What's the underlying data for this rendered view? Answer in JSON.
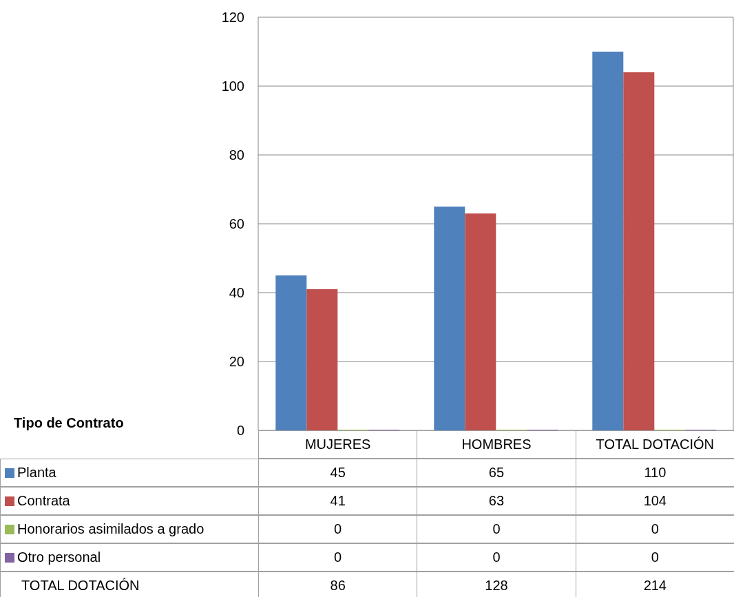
{
  "chart_data": {
    "type": "bar",
    "categories": [
      "MUJERES",
      "HOMBRES",
      "TOTAL DOTACIÓN"
    ],
    "series": [
      {
        "name": "Planta",
        "color": "#4f81bd",
        "values": [
          45,
          65,
          110
        ]
      },
      {
        "name": "Contrata",
        "color": "#c0504d",
        "values": [
          41,
          63,
          104
        ]
      },
      {
        "name": "Honorarios asimilados a grado",
        "color": "#9bbb59",
        "values": [
          0,
          0,
          0
        ]
      },
      {
        "name": "Otro personal",
        "color": "#8064a2",
        "values": [
          0,
          0,
          0
        ]
      }
    ],
    "ylim": [
      0,
      120
    ],
    "yticks": [
      0,
      20,
      40,
      60,
      80,
      100,
      120
    ],
    "grid": "y",
    "legend": "bottom left",
    "legend_title": "Tipo de Contrato",
    "data_labels": true,
    "annotations": [
      "TOTAL DOTACIÓN",
      "86",
      "128",
      "214"
    ]
  }
}
